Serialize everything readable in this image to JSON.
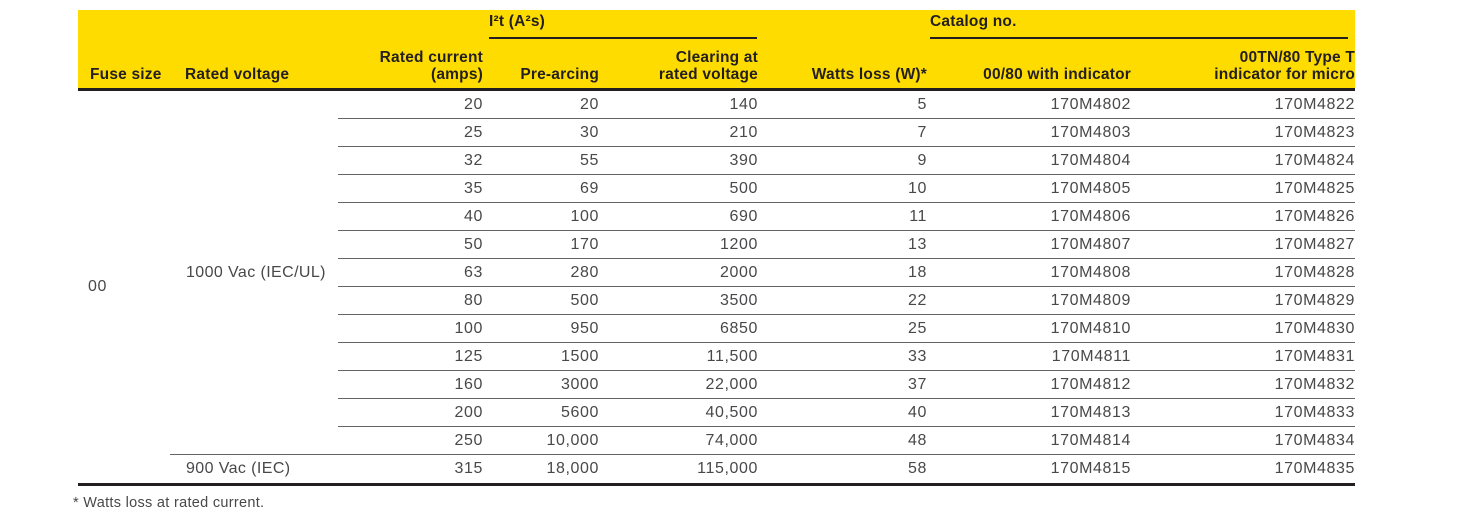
{
  "colors": {
    "header_bg": "#FFDC00",
    "header_text": "#231F20",
    "body_text": "#48484A",
    "divider": "#646466"
  },
  "table": {
    "group_headers": {
      "i2t": "I²t (A²s)",
      "catalog": "Catalog no."
    },
    "headers": {
      "fuse_size": "Fuse size",
      "rated_voltage": "Rated voltage",
      "rated_current": "Rated current\n(amps)",
      "pre_arcing": "Pre-arcing",
      "clearing": "Clearing at\nrated voltage",
      "watts_loss": "Watts loss (W)*",
      "catalog_0080": "00/80 with indicator",
      "catalog_00tn": "00TN/80 Type T\nindicator for micro"
    },
    "fuse_size": "00",
    "voltage_groups": [
      {
        "voltage": "1000 Vac (IEC/UL)",
        "row_span": 13
      },
      {
        "voltage": "900 Vac (IEC)",
        "row_span": 1
      }
    ],
    "rows": [
      {
        "current": "20",
        "pre_arcing": "20",
        "clearing": "140",
        "watts": "5",
        "cat1": "170M4802",
        "cat2": "170M4822"
      },
      {
        "current": "25",
        "pre_arcing": "30",
        "clearing": "210",
        "watts": "7",
        "cat1": "170M4803",
        "cat2": "170M4823"
      },
      {
        "current": "32",
        "pre_arcing": "55",
        "clearing": "390",
        "watts": "9",
        "cat1": "170M4804",
        "cat2": "170M4824"
      },
      {
        "current": "35",
        "pre_arcing": "69",
        "clearing": "500",
        "watts": "10",
        "cat1": "170M4805",
        "cat2": "170M4825"
      },
      {
        "current": "40",
        "pre_arcing": "100",
        "clearing": "690",
        "watts": "11",
        "cat1": "170M4806",
        "cat2": "170M4826"
      },
      {
        "current": "50",
        "pre_arcing": "170",
        "clearing": "1200",
        "watts": "13",
        "cat1": "170M4807",
        "cat2": "170M4827"
      },
      {
        "current": "63",
        "pre_arcing": "280",
        "clearing": "2000",
        "watts": "18",
        "cat1": "170M4808",
        "cat2": "170M4828"
      },
      {
        "current": "80",
        "pre_arcing": "500",
        "clearing": "3500",
        "watts": "22",
        "cat1": "170M4809",
        "cat2": "170M4829"
      },
      {
        "current": "100",
        "pre_arcing": "950",
        "clearing": "6850",
        "watts": "25",
        "cat1": "170M4810",
        "cat2": "170M4830"
      },
      {
        "current": "125",
        "pre_arcing": "1500",
        "clearing": "11,500",
        "watts": "33",
        "cat1": "170M4811",
        "cat2": "170M4831"
      },
      {
        "current": "160",
        "pre_arcing": "3000",
        "clearing": "22,000",
        "watts": "37",
        "cat1": "170M4812",
        "cat2": "170M4832"
      },
      {
        "current": "200",
        "pre_arcing": "5600",
        "clearing": "40,500",
        "watts": "40",
        "cat1": "170M4813",
        "cat2": "170M4833"
      },
      {
        "current": "250",
        "pre_arcing": "10,000",
        "clearing": "74,000",
        "watts": "48",
        "cat1": "170M4814",
        "cat2": "170M4834"
      },
      {
        "current": "315",
        "pre_arcing": "18,000",
        "clearing": "115,000",
        "watts": "58",
        "cat1": "170M4815",
        "cat2": "170M4835"
      }
    ],
    "footnote": "* Watts loss at rated current."
  }
}
